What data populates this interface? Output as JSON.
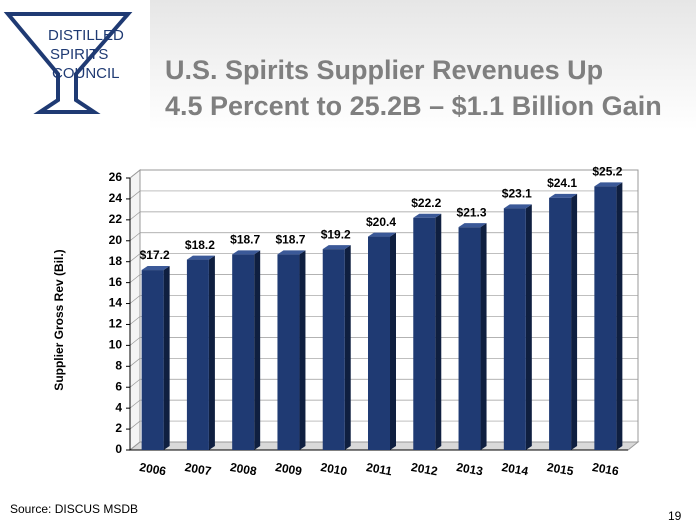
{
  "logo": [
    "DISTILLED",
    "SPIRITS",
    "COUNCIL"
  ],
  "chart_data": {
    "type": "bar",
    "title": [
      "U.S. Spirits Supplier Revenues Up",
      "4.5 Percent to 25.2B – $1.1 Billion Gain"
    ],
    "y_label": "Supplier Gross Rev (Bil.)",
    "categories": [
      "2006",
      "2007",
      "2008",
      "2009",
      "2010",
      "2011",
      "2012",
      "2013",
      "2014",
      "2015",
      "2016"
    ],
    "values": [
      17.2,
      18.2,
      18.7,
      18.7,
      19.2,
      20.4,
      22.2,
      21.3,
      23.1,
      24.1,
      25.2
    ],
    "value_labels": [
      "$17.2",
      "$18.2",
      "$18.7",
      "$18.7",
      "$19.2",
      "$20.4",
      "$22.2",
      "$21.3",
      "$23.1",
      "$24.1",
      "$25.2"
    ],
    "color": "#1f3a73",
    "ylim": [
      0,
      26
    ],
    "yticks": [
      0,
      2,
      4,
      6,
      8,
      10,
      12,
      14,
      16,
      18,
      20,
      22,
      24,
      26
    ],
    "grid": true
  },
  "source": "Source: DISCUS MSDB",
  "page_number": "19"
}
